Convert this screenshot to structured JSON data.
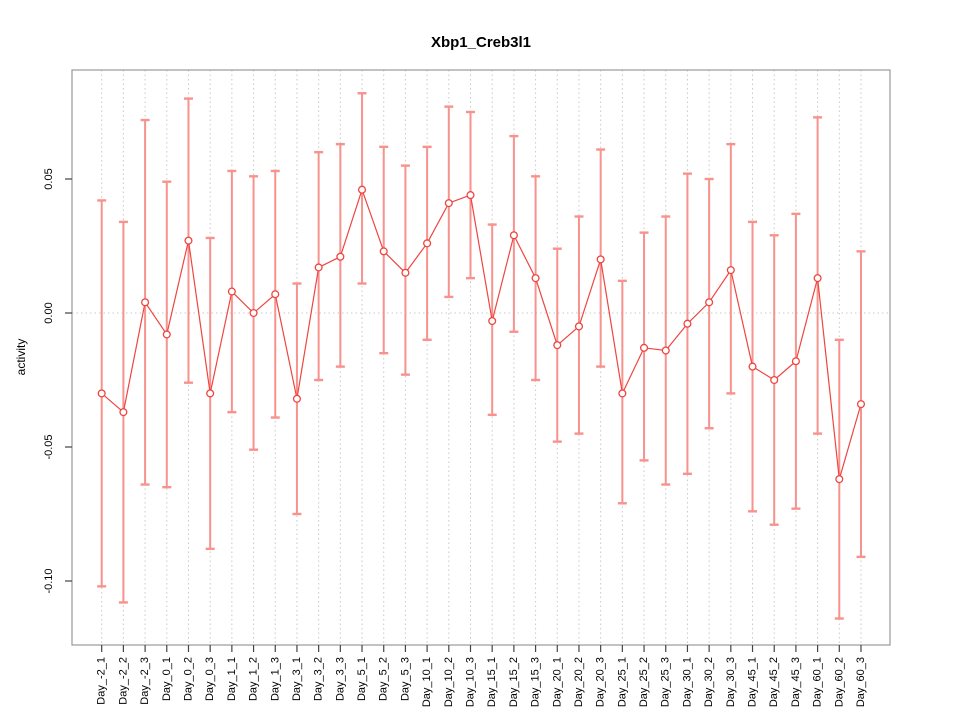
{
  "chart_data": {
    "type": "line",
    "subtype": "points-with-error-bars",
    "title": "Xbp1_Creb3l1",
    "xlabel": "",
    "ylabel": "activity",
    "legend": "none",
    "grid": "vertical dotted gridlines per category, dotted horizontal line at y=0",
    "marker": "open-circle",
    "ylim": [
      -0.124,
      0.091
    ],
    "ytick_values": [
      0.05,
      0.0,
      -0.05,
      -0.1
    ],
    "ytick_labels": [
      "0.05",
      "0.00",
      "-0.05",
      "-0.10"
    ],
    "categories": [
      "Day_-2_1",
      "Day_-2_2",
      "Day_-2_3",
      "Day_0_1",
      "Day_0_2",
      "Day_0_3",
      "Day_1_1",
      "Day_1_2",
      "Day_1_3",
      "Day_3_1",
      "Day_3_2",
      "Day_3_3",
      "Day_5_1",
      "Day_5_2",
      "Day_5_3",
      "Day_10_1",
      "Day_10_2",
      "Day_10_3",
      "Day_15_1",
      "Day_15_2",
      "Day_15_3",
      "Day_20_1",
      "Day_20_2",
      "Day_20_3",
      "Day_25_1",
      "Day_25_2",
      "Day_25_3",
      "Day_30_1",
      "Day_30_2",
      "Day_30_3",
      "Day_45_1",
      "Day_45_2",
      "Day_45_3",
      "Day_60_1",
      "Day_60_2",
      "Day_60_3"
    ],
    "series": [
      {
        "name": "activity",
        "values": [
          -0.03,
          -0.037,
          0.004,
          -0.008,
          0.027,
          -0.03,
          0.008,
          0.0,
          0.007,
          -0.032,
          0.017,
          0.021,
          0.046,
          0.023,
          0.015,
          0.026,
          0.041,
          0.044,
          -0.003,
          0.029,
          0.013,
          -0.012,
          -0.005,
          0.02,
          -0.03,
          -0.013,
          -0.014,
          -0.004,
          0.004,
          0.016,
          -0.02,
          -0.025,
          -0.018,
          0.013,
          -0.062,
          -0.034
        ],
        "upper": [
          0.042,
          0.034,
          0.072,
          0.049,
          0.08,
          0.028,
          0.053,
          0.051,
          0.053,
          0.011,
          0.06,
          0.063,
          0.082,
          0.062,
          0.055,
          0.062,
          0.077,
          0.075,
          0.033,
          0.066,
          0.051,
          0.024,
          0.036,
          0.061,
          0.012,
          0.03,
          0.036,
          0.052,
          0.05,
          0.063,
          0.034,
          0.029,
          0.037,
          0.073,
          -0.01,
          0.023
        ],
        "lower": [
          -0.102,
          -0.108,
          -0.064,
          -0.065,
          -0.026,
          -0.088,
          -0.037,
          -0.051,
          -0.039,
          -0.075,
          -0.025,
          -0.02,
          0.011,
          -0.015,
          -0.023,
          -0.01,
          0.006,
          0.013,
          -0.038,
          -0.007,
          -0.025,
          -0.048,
          -0.045,
          -0.02,
          -0.071,
          -0.055,
          -0.064,
          -0.06,
          -0.043,
          -0.03,
          -0.074,
          -0.079,
          -0.073,
          -0.045,
          -0.114,
          -0.091
        ]
      }
    ],
    "colors": {
      "point_line": "#ee4540",
      "error_bar": "#f7928d",
      "gridline": "#c9c9c9",
      "plot_border": "#999999",
      "tick": "#444444",
      "text": "#000000",
      "background": "#ffffff"
    }
  }
}
